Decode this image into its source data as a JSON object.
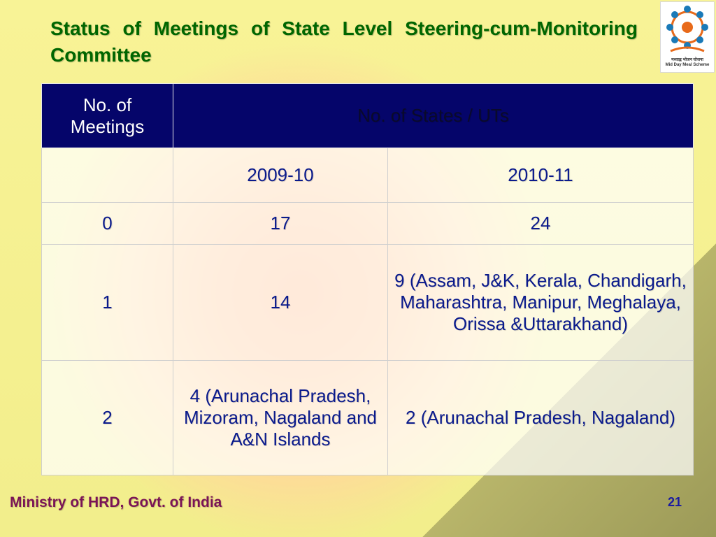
{
  "slide": {
    "title": "Status of Meetings of State Level Steering-cum-Monitoring Committee",
    "logo": {
      "icon": "mid-day-meal-logo-icon",
      "text_line1": "मध्याह्न भोजन योजना",
      "text_line2": "Mid Day Meal Scheme"
    },
    "footer": {
      "left": "Ministry of HRD, Govt. of India",
      "page_number": "21"
    }
  },
  "table": {
    "header": {
      "col1": "No. of Meetings",
      "col2": "No. of States / UTs"
    },
    "subheader": {
      "col1": "",
      "col2": "2009-10",
      "col3": "2010-11"
    },
    "rows": [
      {
        "meetings": "0",
        "y2009": "17",
        "y2010": "24"
      },
      {
        "meetings": "1",
        "y2009": "14",
        "y2010": "9 (Assam, J&K, Kerala, Chandigarh,  Maharashtra, Manipur, Meghalaya, Orissa &Uttarakhand)"
      },
      {
        "meetings": "2",
        "y2009": "4 (Arunachal Pradesh, Mizoram, Nagaland and A&N Islands",
        "y2010": "2 (Arunachal Pradesh, Nagaland)"
      }
    ]
  }
}
